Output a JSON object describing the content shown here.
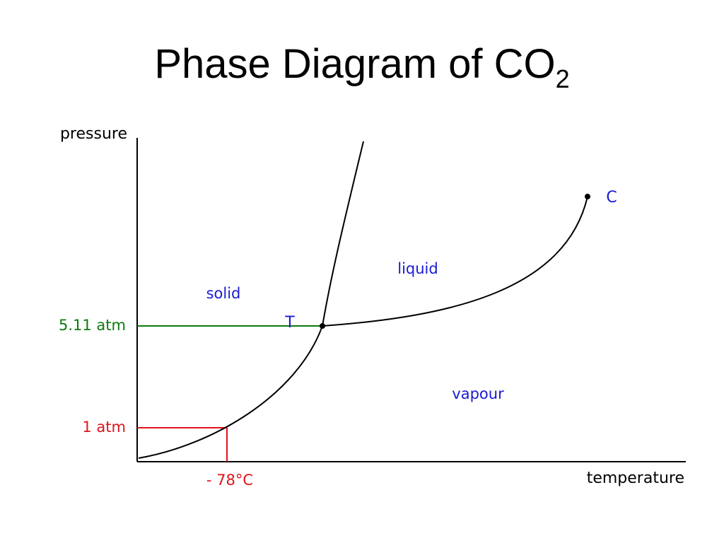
{
  "slide": {
    "title_main": "Phase Diagram of CO",
    "title_subscript": "2"
  },
  "diagram": {
    "y_axis_label": "pressure",
    "x_axis_label": "temperature",
    "regions": {
      "solid": "solid",
      "liquid": "liquid",
      "vapour": "vapour"
    },
    "points": {
      "triple": "T",
      "critical": "C"
    },
    "reference_lines": {
      "triple_pressure": "5.11 atm",
      "one_atm": "1 atm",
      "sublimation_temp": "- 78°C"
    },
    "colors": {
      "region_text": "#1a1ad6",
      "triple_line": "#0e7a0e",
      "one_atm_line": "#e0141c",
      "curve": "#000000"
    }
  }
}
